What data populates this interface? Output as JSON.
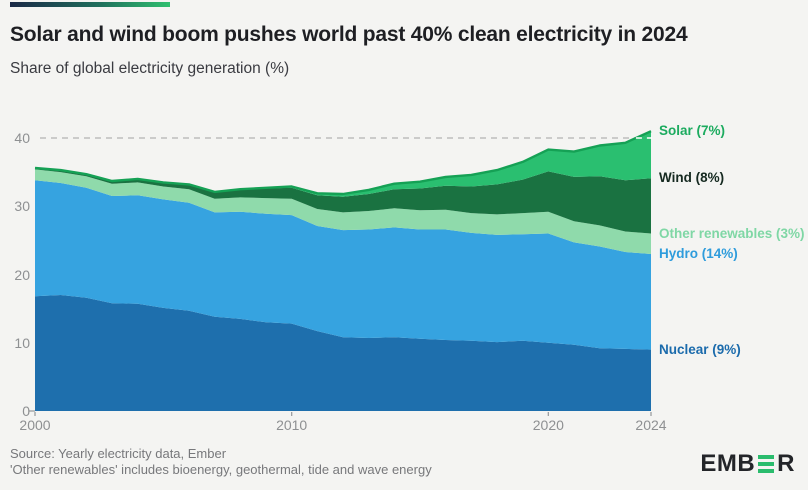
{
  "chart_data": {
    "type": "area",
    "stacked": true,
    "title": "Solar and wind boom pushes world past 40% clean electricity in 2024",
    "subtitle": "Share of global electricity generation (%)",
    "x": [
      2000,
      2001,
      2002,
      2003,
      2004,
      2005,
      2006,
      2007,
      2008,
      2009,
      2010,
      2011,
      2012,
      2013,
      2014,
      2015,
      2016,
      2017,
      2018,
      2019,
      2020,
      2021,
      2022,
      2023,
      2024
    ],
    "series": [
      {
        "name": "Nuclear",
        "label": "Nuclear (9%)",
        "color": "#1e6fad",
        "label_color": "#1b6bac",
        "values": [
          16.8,
          17.0,
          16.6,
          15.8,
          15.7,
          15.1,
          14.7,
          13.8,
          13.5,
          13.0,
          12.8,
          11.7,
          10.8,
          10.7,
          10.8,
          10.6,
          10.4,
          10.3,
          10.1,
          10.3,
          10.0,
          9.7,
          9.2,
          9.1,
          9.0
        ]
      },
      {
        "name": "Hydro",
        "label": "Hydro (14%)",
        "color": "#36a3e0",
        "label_color": "#2e9cdc",
        "values": [
          17.0,
          16.4,
          16.1,
          15.7,
          15.9,
          15.9,
          15.8,
          15.3,
          15.7,
          15.9,
          15.9,
          15.4,
          15.7,
          15.9,
          16.1,
          16.0,
          16.2,
          15.8,
          15.7,
          15.6,
          16.0,
          15.0,
          14.9,
          14.2,
          14.0
        ]
      },
      {
        "name": "Other renewables",
        "label": "Other renewables (3%)",
        "color": "#8fdaab",
        "label_color": "#7fd7a5",
        "values": [
          1.6,
          1.6,
          1.7,
          1.8,
          1.9,
          1.9,
          2.0,
          2.0,
          2.1,
          2.3,
          2.4,
          2.5,
          2.6,
          2.7,
          2.8,
          2.8,
          2.9,
          2.9,
          3.0,
          3.1,
          3.2,
          3.1,
          3.1,
          3.0,
          3.0
        ]
      },
      {
        "name": "Wind",
        "label": "Wind (8%)",
        "color": "#1a7241",
        "label_color": "#152920",
        "values": [
          0.2,
          0.3,
          0.3,
          0.4,
          0.5,
          0.6,
          0.7,
          0.9,
          1.1,
          1.4,
          1.6,
          2.0,
          2.3,
          2.5,
          2.8,
          3.2,
          3.5,
          3.9,
          4.4,
          4.9,
          5.9,
          6.5,
          7.2,
          7.5,
          8.1
        ]
      },
      {
        "name": "Solar",
        "label": "Solar (7%)",
        "color": "#2abf70",
        "label_color": "#1cab5f",
        "edge_stroke": "#15a155",
        "values": [
          0.0,
          0.0,
          0.0,
          0.0,
          0.0,
          0.0,
          0.0,
          0.1,
          0.1,
          0.1,
          0.2,
          0.3,
          0.4,
          0.6,
          0.8,
          1.0,
          1.3,
          1.7,
          2.1,
          2.6,
          3.2,
          3.7,
          4.5,
          5.5,
          6.9
        ]
      }
    ],
    "yticks": [
      0,
      10,
      20,
      30,
      40
    ],
    "xticks": [
      2000,
      2010,
      2020,
      2024
    ],
    "ylim": [
      0,
      42.5
    ],
    "xlim": [
      2000,
      2024
    ],
    "grid": "dashed-highlight-at-40-only",
    "gridline_highlight": {
      "value": 40,
      "style": "dashed",
      "color": "#bdbdbd",
      "color_over_area": "#ffffff"
    },
    "legend_position": "right-edge-labels"
  },
  "footer": {
    "source_line1": "Source: Yearly electricity data, Ember",
    "source_line2": "'Other renewables' includes bioenergy, geothermal, tide and wave energy"
  },
  "logo": {
    "name": "EMBER",
    "text_left": "EMB",
    "text_right": "R",
    "text_color": "#232529",
    "bars_color": "#2abc6d"
  },
  "accent_bar": {
    "from": "#1b2947",
    "to": "#2fbf6f"
  },
  "colors": {
    "background": "#f4f4f2",
    "tick": "#9c9ea0",
    "axis_label": "#8e9092"
  }
}
